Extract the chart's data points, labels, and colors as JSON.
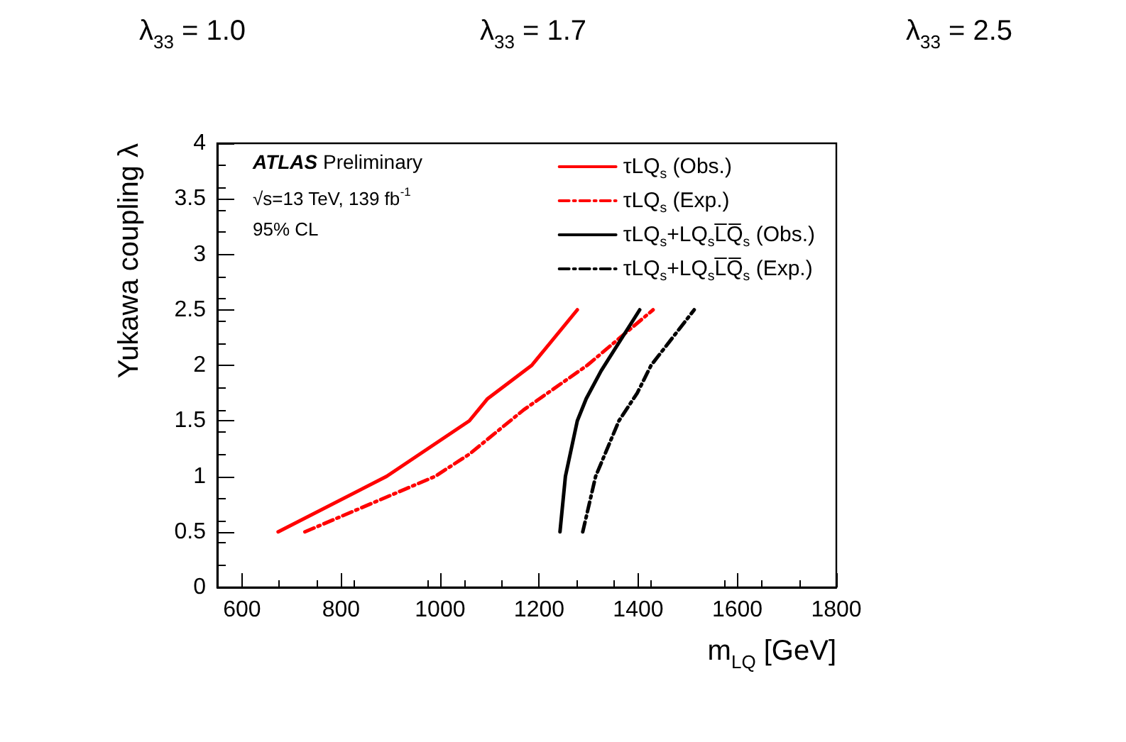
{
  "chart_data": {
    "type": "line",
    "xlabel": "m$_{LQ}$ [GeV]",
    "ylabel": "Yukawa coupling λ",
    "xlim": [
      550,
      1800
    ],
    "xticks": [
      600,
      800,
      1000,
      1200,
      1400,
      1600,
      1800
    ],
    "ylim": [
      0,
      4
    ],
    "yticks": [
      0,
      0.5,
      1,
      1.5,
      2,
      2.5,
      3,
      3.5,
      4
    ],
    "grid": false,
    "legend": "top right",
    "marker": "none",
    "series": [
      {
        "name": "τLQ$_{s}$ (Obs.)",
        "color": "#ff0000",
        "line_style": "solid",
        "x": [
          673,
          892,
          1059,
          1096,
          1185,
          1277
        ],
        "values": [
          0.5,
          1.0,
          1.5,
          1.7,
          2.0,
          2.5
        ]
      },
      {
        "name": "τLQ$_{s}$ (Exp.)",
        "color": "#ff0000",
        "line_style": "dashed",
        "x": [
          727,
          990,
          1059,
          1169,
          1297,
          1430
        ],
        "values": [
          0.5,
          1.0,
          1.2,
          1.6,
          2.0,
          2.5
        ]
      },
      {
        "name": "τLQ$_{s}$+LQ$_{s}$L̅Q̅$_{s}$ (Obs.)",
        "color": "#000000",
        "line_style": "solid",
        "x": [
          1242,
          1253,
          1277,
          1295,
          1325,
          1403
        ],
        "values": [
          0.5,
          1.0,
          1.5,
          1.7,
          1.95,
          2.5
        ]
      },
      {
        "name": "τLQ$_{s}$+LQ$_{s}$L̅Q̅$_{s}$ (Exp.)",
        "color": "#000000",
        "line_style": "dashed",
        "x": [
          1288,
          1314,
          1361,
          1398,
          1426,
          1513
        ],
        "values": [
          0.5,
          1.0,
          1.5,
          1.75,
          2.0,
          2.5
        ]
      }
    ],
    "annotations": [
      "ATLAS Preliminary",
      "√s=13 TeV, 139 fb$^{-1}$",
      "95% CL",
      "λ$_{33}$ = 1.0",
      "λ$_{33}$ = 1.7",
      "λ$_{33}$ = 2.5"
    ]
  }
}
